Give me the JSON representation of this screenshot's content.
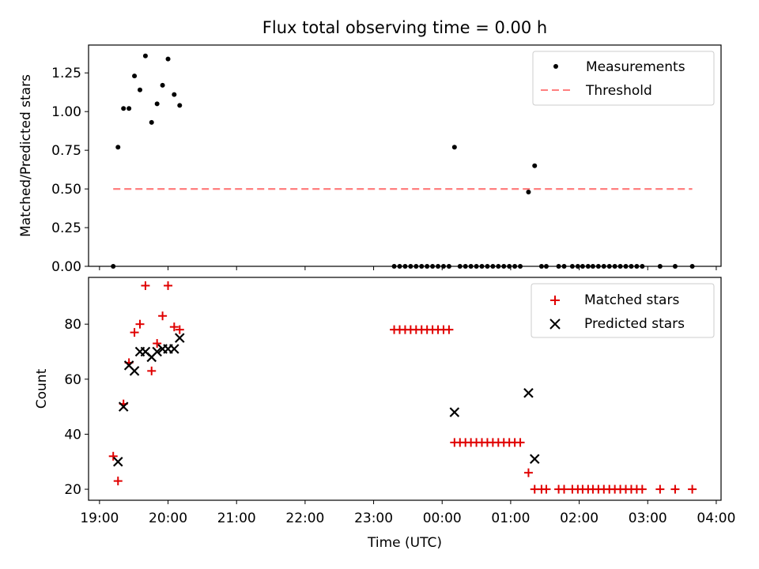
{
  "colors": {
    "measurements": "#000000",
    "threshold": "#ff7f7f",
    "matched": "#e00000",
    "predicted": "#000000"
  },
  "chart_data": [
    {
      "type": "scatter",
      "title": "Flux total observing time = 0.00 h",
      "xlabel": "",
      "ylabel": "Matched/Predicted stars",
      "x_unit": "hours after 19:00 UTC",
      "xlim": [
        18.84,
        28.07
      ],
      "ylim": [
        0,
        1.43
      ],
      "yticks": [
        0.0,
        0.25,
        0.5,
        0.75,
        1.0,
        1.25
      ],
      "ytick_labels": [
        "0.00",
        "0.25",
        "0.50",
        "0.75",
        "1.00",
        "1.25"
      ],
      "legend_position": "top-right",
      "threshold_value": 0.5,
      "threshold_range": [
        19.2,
        27.65
      ],
      "series": [
        {
          "name": "Measurements",
          "marker": "dot",
          "points": [
            [
              19.2,
              0.0
            ],
            [
              19.27,
              0.77
            ],
            [
              19.35,
              1.02
            ],
            [
              19.43,
              1.02
            ],
            [
              19.51,
              1.23
            ],
            [
              19.59,
              1.14
            ],
            [
              19.67,
              1.36
            ],
            [
              19.76,
              0.93
            ],
            [
              19.84,
              1.05
            ],
            [
              19.92,
              1.17
            ],
            [
              20.0,
              1.34
            ],
            [
              20.09,
              1.11
            ],
            [
              20.17,
              1.04
            ],
            [
              23.3,
              0.0
            ],
            [
              23.38,
              0.0
            ],
            [
              23.46,
              0.0
            ],
            [
              23.54,
              0.0
            ],
            [
              23.62,
              0.0
            ],
            [
              23.7,
              0.0
            ],
            [
              23.78,
              0.0
            ],
            [
              23.86,
              0.0
            ],
            [
              23.94,
              0.0
            ],
            [
              24.02,
              0.0
            ],
            [
              24.1,
              0.0
            ],
            [
              24.18,
              0.77
            ],
            [
              24.26,
              0.0
            ],
            [
              24.34,
              0.0
            ],
            [
              24.42,
              0.0
            ],
            [
              24.5,
              0.0
            ],
            [
              24.58,
              0.0
            ],
            [
              24.66,
              0.0
            ],
            [
              24.74,
              0.0
            ],
            [
              24.82,
              0.0
            ],
            [
              24.9,
              0.0
            ],
            [
              24.98,
              0.0
            ],
            [
              25.06,
              0.0
            ],
            [
              25.14,
              0.0
            ],
            [
              25.26,
              0.48
            ],
            [
              25.35,
              0.65
            ],
            [
              25.45,
              0.0
            ],
            [
              25.52,
              0.0
            ],
            [
              25.7,
              0.0
            ],
            [
              25.78,
              0.0
            ],
            [
              25.9,
              0.0
            ],
            [
              25.98,
              0.0
            ],
            [
              26.05,
              0.0
            ],
            [
              26.13,
              0.0
            ],
            [
              26.2,
              0.0
            ],
            [
              26.28,
              0.0
            ],
            [
              26.36,
              0.0
            ],
            [
              26.44,
              0.0
            ],
            [
              26.52,
              0.0
            ],
            [
              26.6,
              0.0
            ],
            [
              26.68,
              0.0
            ],
            [
              26.76,
              0.0
            ],
            [
              26.84,
              0.0
            ],
            [
              26.92,
              0.0
            ],
            [
              27.18,
              0.0
            ],
            [
              27.4,
              0.0
            ],
            [
              27.65,
              0.0
            ]
          ]
        },
        {
          "name": "Threshold",
          "marker": "dashed-line"
        }
      ]
    },
    {
      "type": "scatter",
      "title": "",
      "xlabel": "Time (UTC)",
      "ylabel": "Count",
      "x_unit": "hours after 19:00 UTC",
      "xlim": [
        18.84,
        28.07
      ],
      "ylim": [
        16,
        97
      ],
      "yticks": [
        20,
        40,
        60,
        80
      ],
      "ytick_labels": [
        "20",
        "40",
        "60",
        "80"
      ],
      "xticks": [
        19,
        20,
        21,
        22,
        23,
        24,
        25,
        26,
        27,
        28
      ],
      "xtick_labels": [
        "19:00",
        "20:00",
        "21:00",
        "22:00",
        "23:00",
        "00:00",
        "01:00",
        "02:00",
        "03:00",
        "04:00"
      ],
      "legend_position": "top-right",
      "series": [
        {
          "name": "Matched stars",
          "marker": "plus",
          "points": [
            [
              19.2,
              32
            ],
            [
              19.27,
              23
            ],
            [
              19.35,
              51
            ],
            [
              19.43,
              66
            ],
            [
              19.51,
              77
            ],
            [
              19.59,
              80
            ],
            [
              19.67,
              94
            ],
            [
              19.76,
              63
            ],
            [
              19.84,
              73
            ],
            [
              19.92,
              83
            ],
            [
              20.0,
              94
            ],
            [
              20.09,
              79
            ],
            [
              20.17,
              78
            ],
            [
              23.3,
              78
            ],
            [
              23.38,
              78
            ],
            [
              23.46,
              78
            ],
            [
              23.54,
              78
            ],
            [
              23.62,
              78
            ],
            [
              23.7,
              78
            ],
            [
              23.78,
              78
            ],
            [
              23.86,
              78
            ],
            [
              23.94,
              78
            ],
            [
              24.02,
              78
            ],
            [
              24.1,
              78
            ],
            [
              24.18,
              37
            ],
            [
              24.26,
              37
            ],
            [
              24.34,
              37
            ],
            [
              24.42,
              37
            ],
            [
              24.5,
              37
            ],
            [
              24.58,
              37
            ],
            [
              24.66,
              37
            ],
            [
              24.74,
              37
            ],
            [
              24.82,
              37
            ],
            [
              24.9,
              37
            ],
            [
              24.98,
              37
            ],
            [
              25.06,
              37
            ],
            [
              25.14,
              37
            ],
            [
              25.26,
              26
            ],
            [
              25.35,
              20
            ],
            [
              25.45,
              20
            ],
            [
              25.52,
              20
            ],
            [
              25.7,
              20
            ],
            [
              25.78,
              20
            ],
            [
              25.9,
              20
            ],
            [
              25.98,
              20
            ],
            [
              26.05,
              20
            ],
            [
              26.13,
              20
            ],
            [
              26.2,
              20
            ],
            [
              26.28,
              20
            ],
            [
              26.36,
              20
            ],
            [
              26.44,
              20
            ],
            [
              26.52,
              20
            ],
            [
              26.6,
              20
            ],
            [
              26.68,
              20
            ],
            [
              26.76,
              20
            ],
            [
              26.84,
              20
            ],
            [
              26.92,
              20
            ],
            [
              27.18,
              20
            ],
            [
              27.4,
              20
            ],
            [
              27.65,
              20
            ]
          ]
        },
        {
          "name": "Predicted stars",
          "marker": "x",
          "points": [
            [
              19.27,
              30
            ],
            [
              19.35,
              50
            ],
            [
              19.43,
              65
            ],
            [
              19.51,
              63
            ],
            [
              19.59,
              70
            ],
            [
              19.67,
              70
            ],
            [
              19.76,
              68
            ],
            [
              19.84,
              70
            ],
            [
              19.92,
              71
            ],
            [
              20.0,
              71
            ],
            [
              20.09,
              71
            ],
            [
              20.17,
              75
            ],
            [
              24.18,
              48
            ],
            [
              25.26,
              55
            ],
            [
              25.35,
              31
            ]
          ]
        }
      ]
    }
  ]
}
